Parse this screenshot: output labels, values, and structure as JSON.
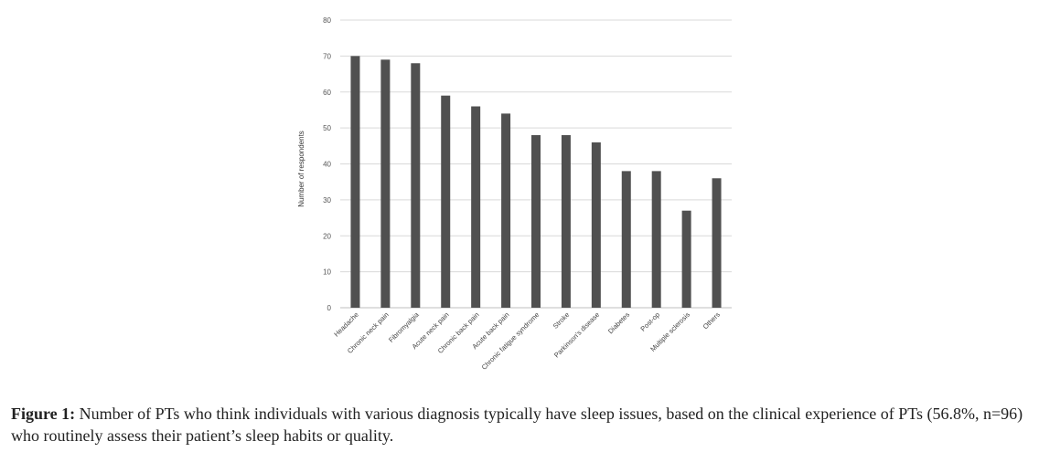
{
  "chart_data": {
    "type": "bar",
    "ylabel": "Number of respondents",
    "xlabel": "",
    "ylim": [
      0,
      80
    ],
    "yticks": [
      0,
      10,
      20,
      30,
      40,
      50,
      60,
      70,
      80
    ],
    "grid": true,
    "bar_color": "#505050",
    "categories": [
      "Headache",
      "Chronic neck pain",
      "Fibromyalgia",
      "Acute neck pain",
      "Chronic back pain",
      "Acute back pain",
      "Chronic fatigue syndrome",
      "Stroke",
      "Parkinson's disease",
      "Diabetes",
      "Post-op",
      "Multiple sclerosis",
      "Others"
    ],
    "values": [
      70,
      69,
      68,
      59,
      56,
      54,
      48,
      48,
      46,
      38,
      38,
      27,
      36
    ]
  },
  "caption": {
    "label": "Figure 1:",
    "text": " Number of PTs who think individuals with various diagnosis typically have sleep issues, based on the clinical experience of PTs (56.8%, n=96) who routinely assess their patient’s sleep habits or quality."
  }
}
